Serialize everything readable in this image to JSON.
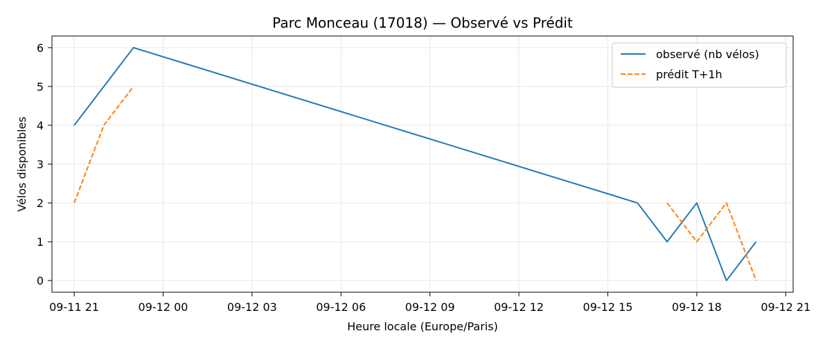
{
  "chart_data": {
    "type": "line",
    "title": "Parc Monceau (17018) — Observé vs Prédit",
    "xlabel": "Heure locale (Europe/Paris)",
    "ylabel": "Vélos disponibles",
    "x_axis_type": "datetime",
    "xlim": [
      "2024-09-11T20:15",
      "2024-09-12T21:15"
    ],
    "ylim": [
      -0.3,
      6.3
    ],
    "x_ticks": [
      {
        "t": "2024-09-11T21:00",
        "label": "09-11 21"
      },
      {
        "t": "2024-09-12T00:00",
        "label": "09-12 00"
      },
      {
        "t": "2024-09-12T03:00",
        "label": "09-12 03"
      },
      {
        "t": "2024-09-12T06:00",
        "label": "09-12 06"
      },
      {
        "t": "2024-09-12T09:00",
        "label": "09-12 09"
      },
      {
        "t": "2024-09-12T12:00",
        "label": "09-12 12"
      },
      {
        "t": "2024-09-12T15:00",
        "label": "09-12 15"
      },
      {
        "t": "2024-09-12T18:00",
        "label": "09-12 18"
      },
      {
        "t": "2024-09-12T21:00",
        "label": "09-12 21"
      }
    ],
    "y_ticks": [
      0,
      1,
      2,
      3,
      4,
      5,
      6
    ],
    "grid": true,
    "legend_position": "top-right",
    "series": [
      {
        "name": "observé (nb vélos)",
        "color": "#1f77b4",
        "style": "solid",
        "points": [
          {
            "t": "2024-09-11T21:00",
            "y": 4
          },
          {
            "t": "2024-09-11T23:00",
            "y": 6
          },
          {
            "t": "2024-09-12T16:00",
            "y": 2
          },
          {
            "t": "2024-09-12T17:00",
            "y": 1
          },
          {
            "t": "2024-09-12T18:00",
            "y": 2
          },
          {
            "t": "2024-09-12T19:00",
            "y": 0
          },
          {
            "t": "2024-09-12T20:00",
            "y": 1
          }
        ]
      },
      {
        "name": "prédit T+1h",
        "color": "#ff7f0e",
        "style": "dashed",
        "segments": [
          [
            {
              "t": "2024-09-11T21:00",
              "y": 2
            },
            {
              "t": "2024-09-11T22:00",
              "y": 4
            },
            {
              "t": "2024-09-11T23:00",
              "y": 5
            }
          ],
          [
            {
              "t": "2024-09-12T17:00",
              "y": 2
            },
            {
              "t": "2024-09-12T18:00",
              "y": 1
            },
            {
              "t": "2024-09-12T19:00",
              "y": 2
            },
            {
              "t": "2024-09-12T20:00",
              "y": 0
            }
          ]
        ]
      }
    ]
  }
}
